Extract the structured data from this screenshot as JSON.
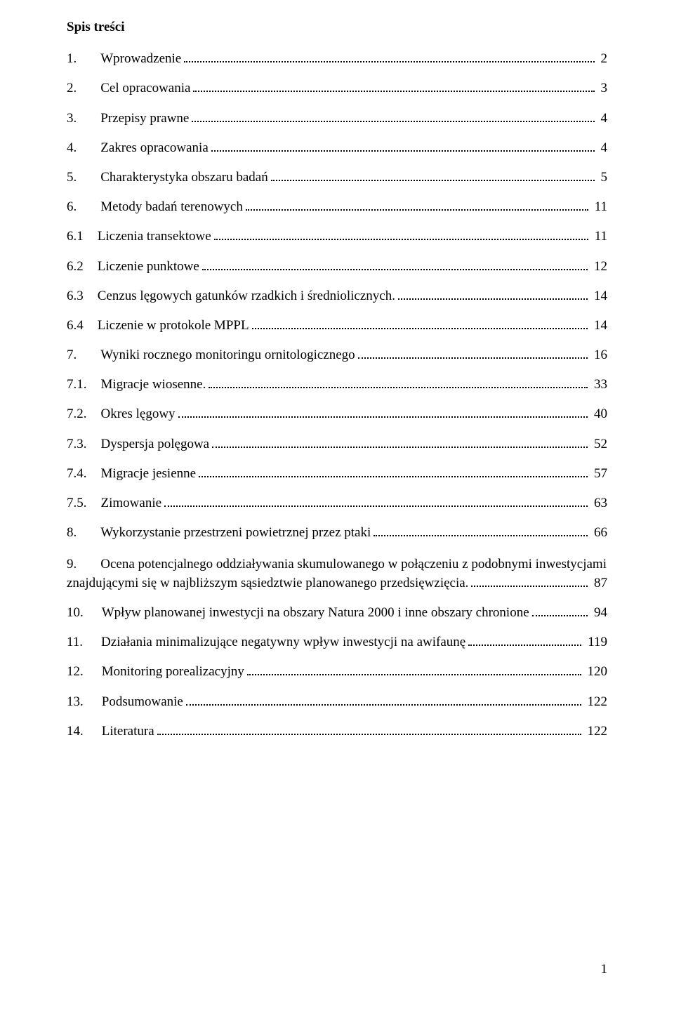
{
  "title": "Spis treści",
  "page_number": "1",
  "entries": [
    {
      "num": "1.",
      "label": "Wprowadzenie",
      "page": "2",
      "indent": 0,
      "gap": 34
    },
    {
      "num": "2.",
      "label": "Cel opracowania",
      "page": "3",
      "indent": 0,
      "gap": 34
    },
    {
      "num": "3.",
      "label": "Przepisy prawne",
      "page": "4",
      "indent": 0,
      "gap": 34
    },
    {
      "num": "4.",
      "label": "Zakres opracowania",
      "page": "4",
      "indent": 0,
      "gap": 34
    },
    {
      "num": "5.",
      "label": "Charakterystyka obszaru badań",
      "page": "5",
      "indent": 0,
      "gap": 34
    },
    {
      "num": "6.",
      "label": "Metody badań terenowych",
      "page": "11",
      "indent": 0,
      "gap": 34
    },
    {
      "num": "6.1",
      "label": "Liczenia transektowe",
      "page": "11",
      "indent": 0,
      "gap": 20
    },
    {
      "num": "6.2",
      "label": "Liczenie punktowe",
      "page": "12",
      "indent": 0,
      "gap": 20
    },
    {
      "num": "6.3",
      "label": "Cenzus lęgowych gatunków rzadkich i średniolicznych.",
      "page": "14",
      "indent": 0,
      "gap": 20
    },
    {
      "num": "6.4",
      "label": "Liczenie w protokole MPPL",
      "page": "14",
      "indent": 0,
      "gap": 20
    },
    {
      "num": "7.",
      "label": "Wyniki rocznego monitoringu ornitologicznego",
      "page": "16",
      "indent": 0,
      "gap": 34
    },
    {
      "num": "7.1.",
      "label": "Migracje wiosenne.",
      "page": "33",
      "indent": 0,
      "gap": 20
    },
    {
      "num": "7.2.",
      "label": "Okres lęgowy",
      "page": "40",
      "indent": 0,
      "gap": 20
    },
    {
      "num": "7.3.",
      "label": "Dyspersja polęgowa",
      "page": "52",
      "indent": 0,
      "gap": 20
    },
    {
      "num": "7.4.",
      "label": "Migracje jesienne",
      "page": "57",
      "indent": 0,
      "gap": 20
    },
    {
      "num": "7.5.",
      "label": "Zimowanie",
      "page": "63",
      "indent": 0,
      "gap": 20
    },
    {
      "num": "8.",
      "label": "Wykorzystanie przestrzeni powietrznej przez ptaki",
      "page": "66",
      "indent": 0,
      "gap": 34
    },
    {
      "num": "9.",
      "label_line1": "Ocena potencjalnego oddziaływania skumulowanego w połączeniu z podobnymi inwestycjami",
      "label_line2": "znajdującymi się w najbliższym sąsiedztwie planowanego przedsięwzięcia.",
      "page": "87",
      "indent": 0,
      "gap": 34,
      "multiline": true
    },
    {
      "num": "10.",
      "label": "Wpływ planowanej inwestycji na obszary Natura 2000 i inne obszary chronione",
      "page": "94",
      "indent": 0,
      "gap": 26
    },
    {
      "num": "11.",
      "label": "Działania minimalizujące negatywny wpływ inwestycji na awifaunę",
      "page": "119",
      "indent": 0,
      "gap": 26
    },
    {
      "num": "12.",
      "label": "Monitoring porealizacyjny",
      "page": "120",
      "indent": 0,
      "gap": 26
    },
    {
      "num": "13.",
      "label": "Podsumowanie",
      "page": "122",
      "indent": 0,
      "gap": 26
    },
    {
      "num": "14.",
      "label": "Literatura",
      "page": "122",
      "indent": 0,
      "gap": 26
    }
  ]
}
